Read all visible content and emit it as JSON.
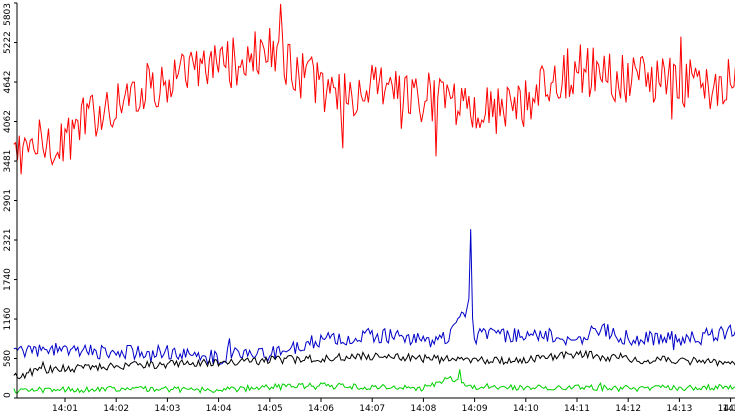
{
  "chart_data": {
    "type": "line",
    "title": "",
    "xlabel": "",
    "ylabel": "",
    "grid": false,
    "legend": "none",
    "x_tick_labels": [
      "14:01",
      "14:02",
      "14:03",
      "14:04",
      "14:05",
      "14:06",
      "14:07",
      "14:08",
      "14:09",
      "14:10",
      "14:11",
      "14:12",
      "14:13",
      "14:14",
      "14"
    ],
    "y_ticks": [
      0,
      580,
      1160,
      1740,
      2321,
      2901,
      3481,
      4062,
      4642,
      5222,
      5803
    ],
    "y_tick_labels": [
      "0",
      "580",
      "1160",
      "1740",
      "2321",
      "2901",
      "3481",
      "4062",
      "4642",
      "5222",
      "5803"
    ],
    "ylim": [
      0,
      5803
    ],
    "x_range_minutes": [
      0,
      15.35
    ],
    "series": [
      {
        "color": "#ff0000",
        "x": [
          0,
          0.5,
          1,
          1.5,
          2,
          2.5,
          3,
          3.5,
          4,
          4.5,
          5,
          5.5,
          6,
          6.5,
          7,
          7.5,
          8,
          8.5,
          9,
          9.5,
          10,
          10.5,
          11,
          11.5,
          12,
          12.5,
          13,
          13.5,
          14,
          14.5,
          15,
          15.35
        ],
        "values": [
          3600,
          3750,
          3850,
          4150,
          4350,
          4550,
          4650,
          4750,
          4900,
          4950,
          5100,
          4800,
          4550,
          4400,
          4550,
          4450,
          4450,
          4250,
          4250,
          4250,
          4350,
          4600,
          4850,
          4750,
          4650,
          4650,
          4650,
          4600,
          4700,
          4650,
          4700,
          4800
        ],
        "min_dip": {
          "x": 8.25,
          "value": 3550
        },
        "peak": {
          "x": 5.2,
          "value": 5790
        }
      },
      {
        "color": "#0000c8",
        "x": [
          0,
          1,
          2,
          3,
          4,
          4.6,
          5,
          6,
          7,
          7.5,
          8,
          8.5,
          8.9,
          9,
          9.5,
          10,
          10.5,
          11,
          11.5,
          12,
          12.5,
          13,
          13.5,
          14,
          14.5,
          15,
          15.35
        ],
        "values": [
          680,
          690,
          670,
          680,
          600,
          720,
          640,
          850,
          920,
          900,
          850,
          860,
          1400,
          900,
          950,
          900,
          880,
          880,
          1000,
          880,
          880,
          870,
          910,
          970,
          900,
          920,
          900
        ],
        "peak": {
          "x": 8.92,
          "value": 2480
        }
      },
      {
        "color": "#000000",
        "x": [
          0,
          0.5,
          1,
          2,
          3,
          4,
          5,
          6,
          7,
          8,
          9,
          10,
          11,
          12,
          13,
          14,
          15,
          15.35
        ],
        "values": [
          300,
          420,
          430,
          470,
          500,
          520,
          560,
          580,
          620,
          580,
          550,
          560,
          650,
          560,
          560,
          500,
          500,
          480
        ]
      },
      {
        "color": "#00d000",
        "x": [
          0,
          1,
          2,
          3,
          4,
          5,
          6,
          7,
          8,
          8.5,
          9,
          9.5,
          10,
          11,
          12,
          13,
          14,
          15,
          15.35
        ],
        "values": [
          110,
          120,
          140,
          130,
          120,
          160,
          180,
          160,
          150,
          300,
          170,
          160,
          160,
          150,
          140,
          150,
          160,
          140,
          130
        ],
        "peak": {
          "x": 8.7,
          "value": 420
        }
      }
    ]
  }
}
